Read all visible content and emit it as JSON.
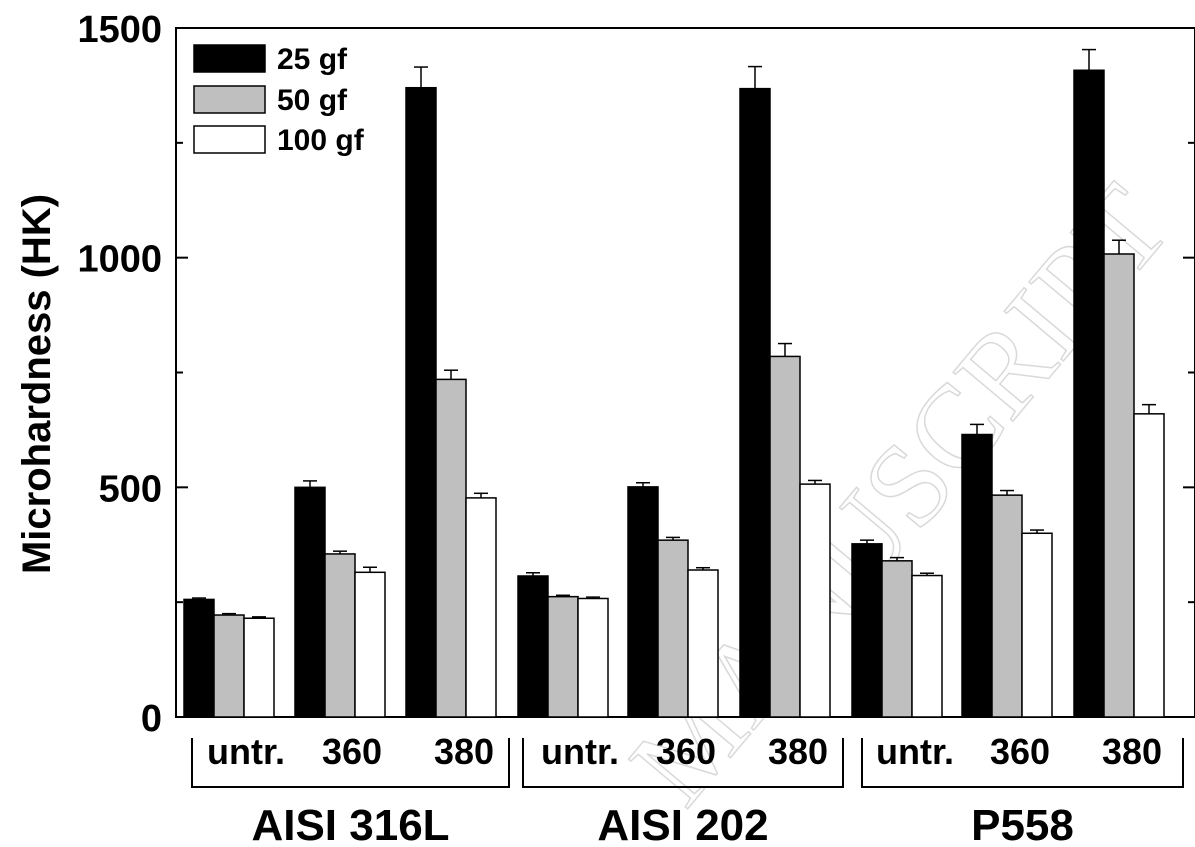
{
  "chart_data": {
    "type": "bar",
    "ylabel": "Microhardness (HK)",
    "ylim": [
      0,
      1500
    ],
    "yticks": [
      0,
      500,
      1000,
      1500
    ],
    "grid": false,
    "legend_position": "top-left",
    "legend": [
      {
        "name": "25 gf",
        "color": "#000000"
      },
      {
        "name": "50 gf",
        "color": "#bfbfbf"
      },
      {
        "name": "100 gf",
        "color": "#ffffff"
      }
    ],
    "groups": [
      {
        "name": "AISI 316L",
        "conditions": [
          "untr.",
          "360",
          "380"
        ]
      },
      {
        "name": "AISI 202",
        "conditions": [
          "untr.",
          "360",
          "380"
        ]
      },
      {
        "name": "P558",
        "conditions": [
          "untr.",
          "360",
          "380"
        ]
      }
    ],
    "series": [
      {
        "name": "25 gf",
        "values": [
          256,
          500,
          1370,
          307,
          501,
          1368,
          377,
          615,
          1408
        ],
        "errors": [
          3,
          14,
          45,
          7,
          9,
          48,
          8,
          22,
          45
        ]
      },
      {
        "name": "50 gf",
        "values": [
          222,
          355,
          735,
          262,
          385,
          785,
          340,
          483,
          1008
        ],
        "errors": [
          3,
          6,
          20,
          3,
          6,
          28,
          7,
          10,
          30
        ]
      },
      {
        "name": "100 gf",
        "values": [
          215,
          315,
          477,
          258,
          320,
          507,
          308,
          400,
          660
        ],
        "errors": [
          3,
          11,
          10,
          3,
          5,
          8,
          5,
          7,
          20
        ]
      }
    ]
  },
  "watermark": "MANUSCRIPT"
}
